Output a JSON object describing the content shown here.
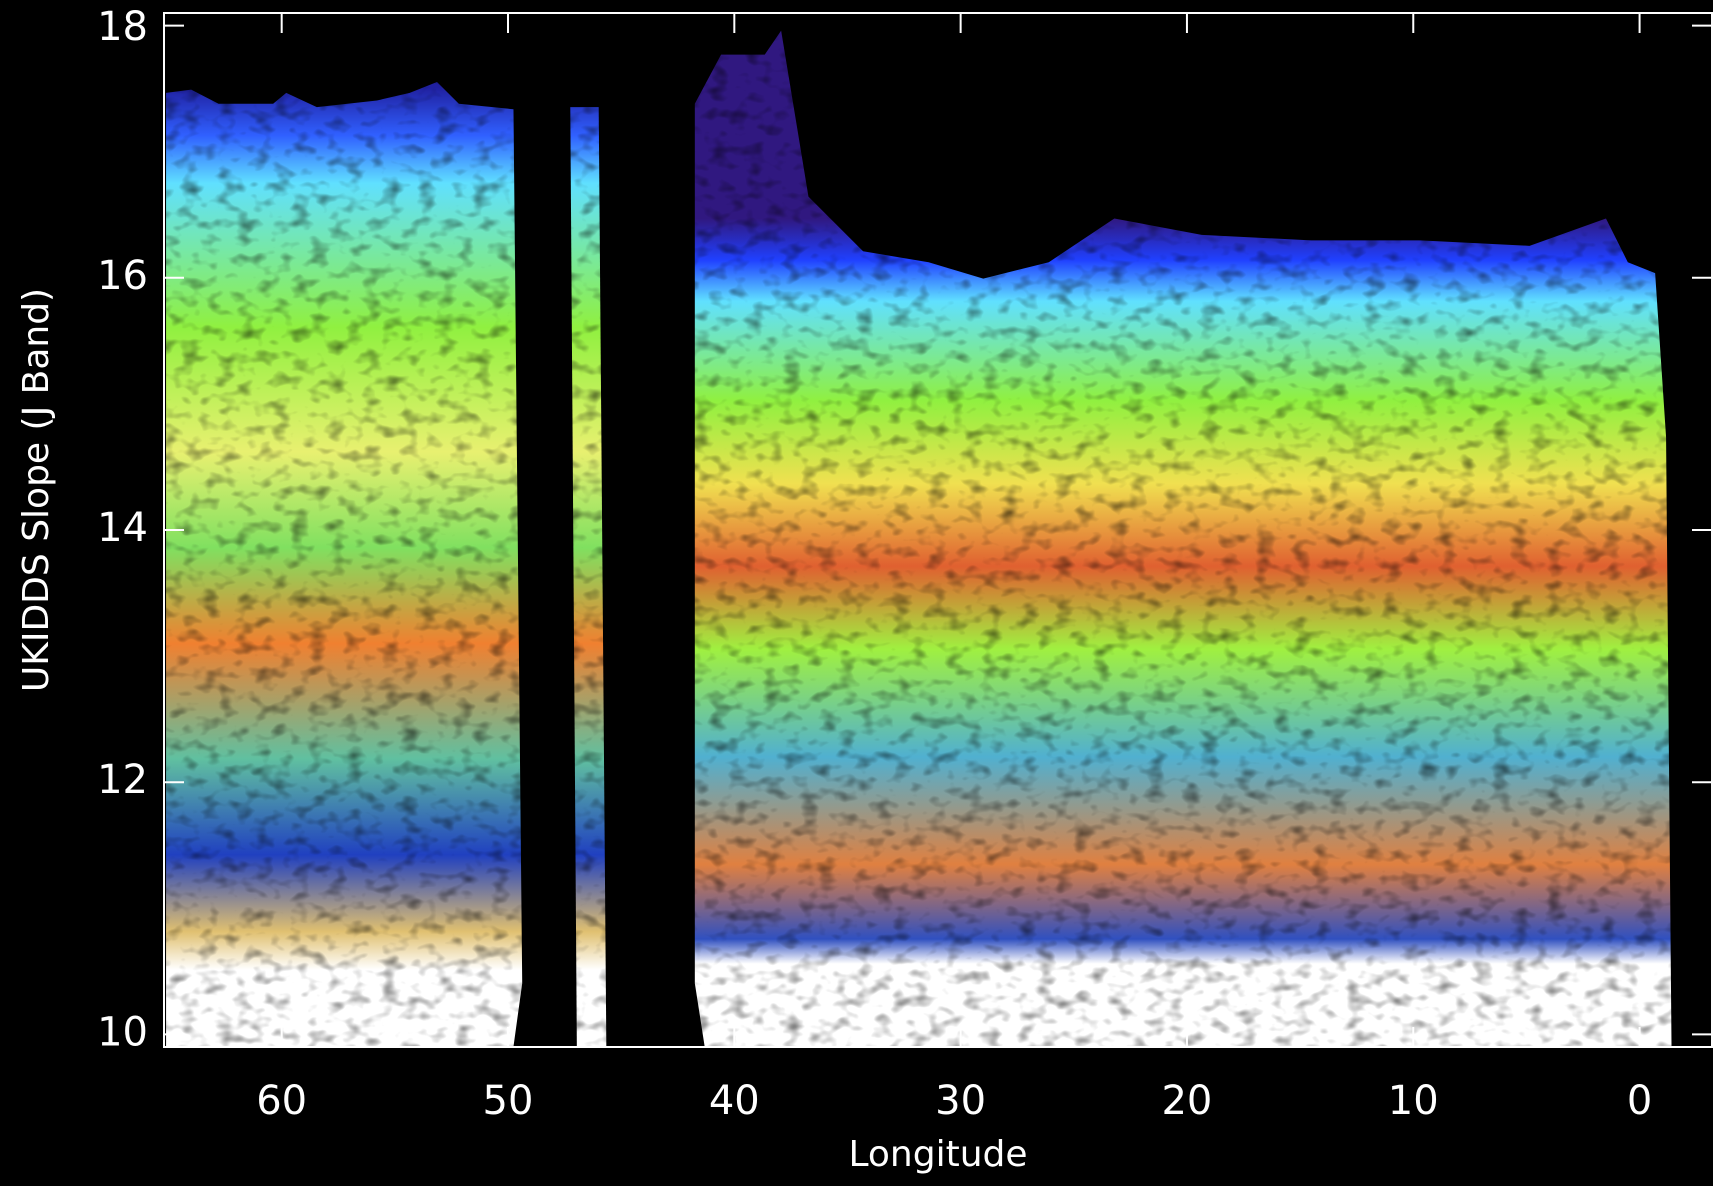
{
  "chart_data": {
    "type": "heatmap",
    "x_label": "Longitude",
    "y_label": "UKIDDS Slope (J Band)",
    "xlim": [
      65.2,
      -3.2
    ],
    "xticks": [
      60,
      50,
      40,
      30,
      20,
      10,
      0
    ],
    "ylim": [
      9.9,
      18.1
    ],
    "yticks": [
      10,
      12,
      14,
      16,
      18
    ]
  }
}
